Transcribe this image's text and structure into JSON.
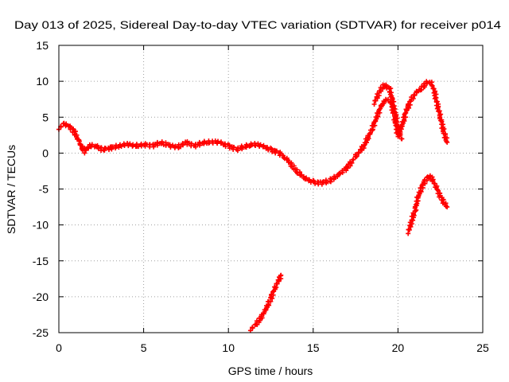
{
  "chart_data": {
    "type": "scatter",
    "title": "Day 013 of 2025, Sidereal Day-to-day VTEC variation (SDTVAR) for receiver p014",
    "xlabel": "GPS time / hours",
    "ylabel": "SDTVAR / TECUs",
    "xlim": [
      0,
      25
    ],
    "ylim": [
      -25,
      15
    ],
    "xticks": [
      0,
      5,
      10,
      15,
      20,
      25
    ],
    "yticks": [
      -25,
      -20,
      -15,
      -10,
      -5,
      0,
      5,
      10,
      15
    ],
    "grid": true,
    "marker": "+",
    "series": [
      {
        "name": "main",
        "color": "#ff0000",
        "x": [
          0,
          0.3,
          0.6,
          0.9,
          1.2,
          1.5,
          1.8,
          2.2,
          2.6,
          3.0,
          3.5,
          4.0,
          4.5,
          5.0,
          5.5,
          6.0,
          6.5,
          7.0,
          7.5,
          8.0,
          8.5,
          9.0,
          9.5,
          10.0,
          10.5,
          11.0,
          11.5,
          12.0,
          12.5,
          13.0,
          13.5,
          14.0,
          14.5,
          15.0,
          15.5,
          16.0,
          16.5,
          17.0,
          17.5,
          18.0,
          18.5,
          19.0,
          19.3,
          19.6,
          19.8,
          20.0,
          20.2,
          20.5,
          20.8,
          21.1,
          21.4,
          21.7,
          21.9,
          22.1,
          22.3,
          22.5,
          22.7,
          22.9
        ],
        "y": [
          3.5,
          4.0,
          3.8,
          3.0,
          1.5,
          0.2,
          1.0,
          1.0,
          0.5,
          0.7,
          1.0,
          1.2,
          1.0,
          1.2,
          1.0,
          1.5,
          1.0,
          0.8,
          1.5,
          1.0,
          1.5,
          1.5,
          1.5,
          1.0,
          0.5,
          1.0,
          1.2,
          1.0,
          0.5,
          0.0,
          -1.0,
          -2.5,
          -3.5,
          -4.0,
          -4.2,
          -3.8,
          -3.0,
          -2.0,
          -0.5,
          1.0,
          3.5,
          6.5,
          7.5,
          7.0,
          5.0,
          2.5,
          3.5,
          6.0,
          7.5,
          8.5,
          9.0,
          9.8,
          10.0,
          9.0,
          7.0,
          5.0,
          3.0,
          1.5
        ]
      },
      {
        "name": "spike-1",
        "color": "#ff0000",
        "x": [
          18.6,
          18.9,
          19.2,
          19.5,
          19.8,
          20.0,
          20.2
        ],
        "y": [
          7.0,
          8.5,
          9.5,
          9.0,
          6.0,
          3.5,
          2.0
        ]
      },
      {
        "name": "segment-low",
        "color": "#ff0000",
        "x": [
          11.3,
          11.6,
          11.9,
          12.2,
          12.5,
          12.8,
          13.1
        ],
        "y": [
          -24.5,
          -24.0,
          -23.0,
          -21.8,
          -20.2,
          -18.5,
          -17.0
        ]
      },
      {
        "name": "segment-right",
        "color": "#ff0000",
        "x": [
          20.6,
          20.8,
          21.0,
          21.2,
          21.5,
          21.8,
          22.0,
          22.3,
          22.6,
          22.9
        ],
        "y": [
          -11.0,
          -9.5,
          -8.0,
          -6.0,
          -4.2,
          -3.2,
          -3.5,
          -5.0,
          -6.5,
          -7.5
        ]
      }
    ]
  }
}
